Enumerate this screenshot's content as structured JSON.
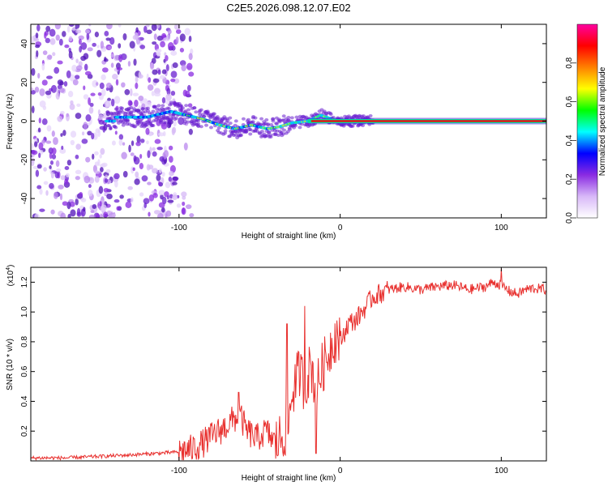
{
  "title": "C2E5.2026.098.12.07.E02",
  "chart_data": [
    {
      "type": "heatmap",
      "name": "spectrogram",
      "xlabel": "Height of straight line (km)",
      "ylabel": "Frequency (Hz)",
      "xlim": [
        -192,
        128
      ],
      "ylim": [
        -50,
        50
      ],
      "x_ticks": [
        -100,
        0,
        100
      ],
      "x_tick_labels": [
        "-100",
        "0",
        "100"
      ],
      "y_ticks": [
        -40,
        -20,
        0,
        20,
        40
      ],
      "y_tick_labels": [
        "-40",
        "-20",
        "0",
        "20",
        "40"
      ],
      "ridge": {
        "description": "dominant frequency trace",
        "x": [
          -140,
          -120,
          -105,
          -95,
          -85,
          -75,
          -65,
          -55,
          -45,
          -38,
          -30,
          -20,
          -12,
          -5,
          0,
          20,
          60,
          100,
          128
        ],
        "y": [
          2,
          2,
          5,
          3,
          1,
          -2,
          -4,
          -2,
          -4,
          -3,
          -1,
          0,
          3,
          1,
          0,
          0,
          0,
          0,
          0
        ]
      },
      "colorbar": {
        "label": "Normalized spectral amplitude",
        "range": [
          0,
          1
        ],
        "ticks": [
          0.0,
          0.2,
          0.4,
          0.6,
          0.8
        ],
        "tick_labels": [
          "0.0",
          "0.2",
          "0.4",
          "0.6",
          "0.8"
        ],
        "colors": [
          "#ffffff",
          "#d8b8f8",
          "#8a2be2",
          "#0000ff",
          "#00ffff",
          "#00ff00",
          "#ffff00",
          "#ff8000",
          "#ff0000",
          "#ff00a0"
        ]
      }
    },
    {
      "type": "line",
      "name": "snr",
      "xlabel": "Height of straight line (km)",
      "ylabel": "SNR (10 * v/v)",
      "y_multiplier": "(x10",
      "y_multiplier_exp": "4",
      "y_multiplier_close": ")",
      "xlim": [
        -192,
        128
      ],
      "ylim": [
        0,
        1.3
      ],
      "x_ticks": [
        -100,
        0,
        100
      ],
      "x_tick_labels": [
        "-100",
        "0",
        "100"
      ],
      "y_ticks": [
        0.2,
        0.4,
        0.6,
        0.8,
        1.0,
        1.2
      ],
      "y_tick_labels": [
        "0.2",
        "0.4",
        "0.6",
        "0.8",
        "1.0",
        "1.2"
      ],
      "color": "#e8302e",
      "series": [
        {
          "name": "SNR",
          "x": [
            -192,
            -170,
            -150,
            -130,
            -115,
            -100,
            -92,
            -85,
            -78,
            -72,
            -66,
            -62,
            -58,
            -52,
            -46,
            -40,
            -35,
            -32,
            -30,
            -27,
            -25,
            -22,
            -18,
            -15,
            -12,
            -8,
            -5,
            -2,
            0,
            5,
            10,
            15,
            20,
            30,
            40,
            50,
            60,
            70,
            80,
            90,
            95,
            100,
            105,
            110,
            115,
            120,
            128
          ],
          "y": [
            0.02,
            0.02,
            0.03,
            0.04,
            0.05,
            0.06,
            0.08,
            0.12,
            0.18,
            0.22,
            0.28,
            0.3,
            0.2,
            0.15,
            0.2,
            0.12,
            0.18,
            0.25,
            0.45,
            0.55,
            0.6,
            0.5,
            0.65,
            0.45,
            0.6,
            0.7,
            0.8,
            0.85,
            0.8,
            0.92,
            0.95,
            1.02,
            1.1,
            1.15,
            1.17,
            1.15,
            1.17,
            1.18,
            1.15,
            1.17,
            1.2,
            1.18,
            1.14,
            1.12,
            1.15,
            1.16,
            1.15
          ]
        }
      ],
      "peaks": {
        "x": [
          -63,
          -33,
          -22,
          -15,
          100
        ],
        "y": [
          0.46,
          0.92,
          1.04,
          0.05,
          1.29
        ]
      }
    }
  ]
}
